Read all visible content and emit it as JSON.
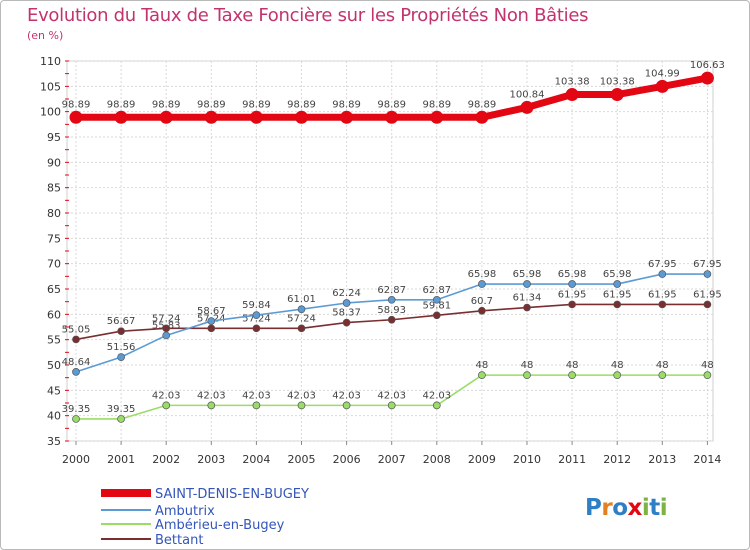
{
  "chart_data": {
    "type": "line",
    "title": "Evolution du Taux de Taxe Foncière sur les Propriétés Non Bâties",
    "ylabel": "(en %)",
    "xlabel": "",
    "ylim": [
      35,
      110
    ],
    "yticks": [
      35,
      40,
      45,
      50,
      55,
      60,
      65,
      70,
      75,
      80,
      85,
      90,
      95,
      100,
      105,
      110
    ],
    "grid": true,
    "x": [
      "2000",
      "2001",
      "2002",
      "2003",
      "2004",
      "2005",
      "2006",
      "2007",
      "2008",
      "2009",
      "2010",
      "2011",
      "2012",
      "2013",
      "2014"
    ],
    "series": [
      {
        "name": "SAINT-DENIS-EN-BUGEY",
        "color": "#e30613",
        "values": [
          98.89,
          98.89,
          98.89,
          98.89,
          98.89,
          98.89,
          98.89,
          98.89,
          98.89,
          98.89,
          100.84,
          103.38,
          103.38,
          104.99,
          106.63
        ],
        "labels": [
          "98.89",
          "98.89",
          "98.89",
          "98.89",
          "98.89",
          "98.89",
          "98.89",
          "98.89",
          "98.89",
          "98.89",
          "100.84",
          "103.38",
          "103.38",
          "104.99",
          "106.63"
        ]
      },
      {
        "name": "Ambutrix",
        "color": "#5b9bd5",
        "values": [
          48.64,
          51.56,
          55.83,
          58.67,
          59.84,
          61.01,
          62.24,
          62.87,
          62.87,
          65.98,
          65.98,
          65.98,
          65.98,
          67.95,
          67.95
        ],
        "labels": [
          "48.64",
          "51.56",
          "55.83",
          "58.67",
          "59.84",
          "61.01",
          "62.24",
          "62.87",
          "62.87",
          "65.98",
          "65.98",
          "65.98",
          "65.98",
          "67.95",
          "67.95"
        ]
      },
      {
        "name": "Ambérieu-en-Bugey",
        "color": "#99dd66",
        "values": [
          39.35,
          39.35,
          42.03,
          42.03,
          42.03,
          42.03,
          42.03,
          42.03,
          42.03,
          48,
          48,
          48,
          48,
          48,
          48
        ],
        "labels": [
          "39.35",
          "39.35",
          "42.03",
          "42.03",
          "42.03",
          "42.03",
          "42.03",
          "42.03",
          "42.03",
          "48",
          "48",
          "48",
          "48",
          "48",
          "48"
        ]
      },
      {
        "name": "Bettant",
        "color": "#7b2e30",
        "values": [
          55.05,
          56.67,
          57.24,
          57.24,
          57.24,
          57.24,
          58.37,
          58.93,
          59.81,
          60.7,
          61.34,
          61.95,
          61.95,
          61.95,
          61.95
        ],
        "labels": [
          "55.05",
          "56.67",
          "57.24",
          "57.24",
          "57.24",
          "57.24",
          "58.37",
          "58.93",
          "59.81",
          "60.7",
          "61.34",
          "61.95",
          "61.95",
          "61.95",
          "61.95"
        ]
      }
    ],
    "legend_position": "bottom-left"
  },
  "logo": {
    "text": "Proxiti"
  }
}
